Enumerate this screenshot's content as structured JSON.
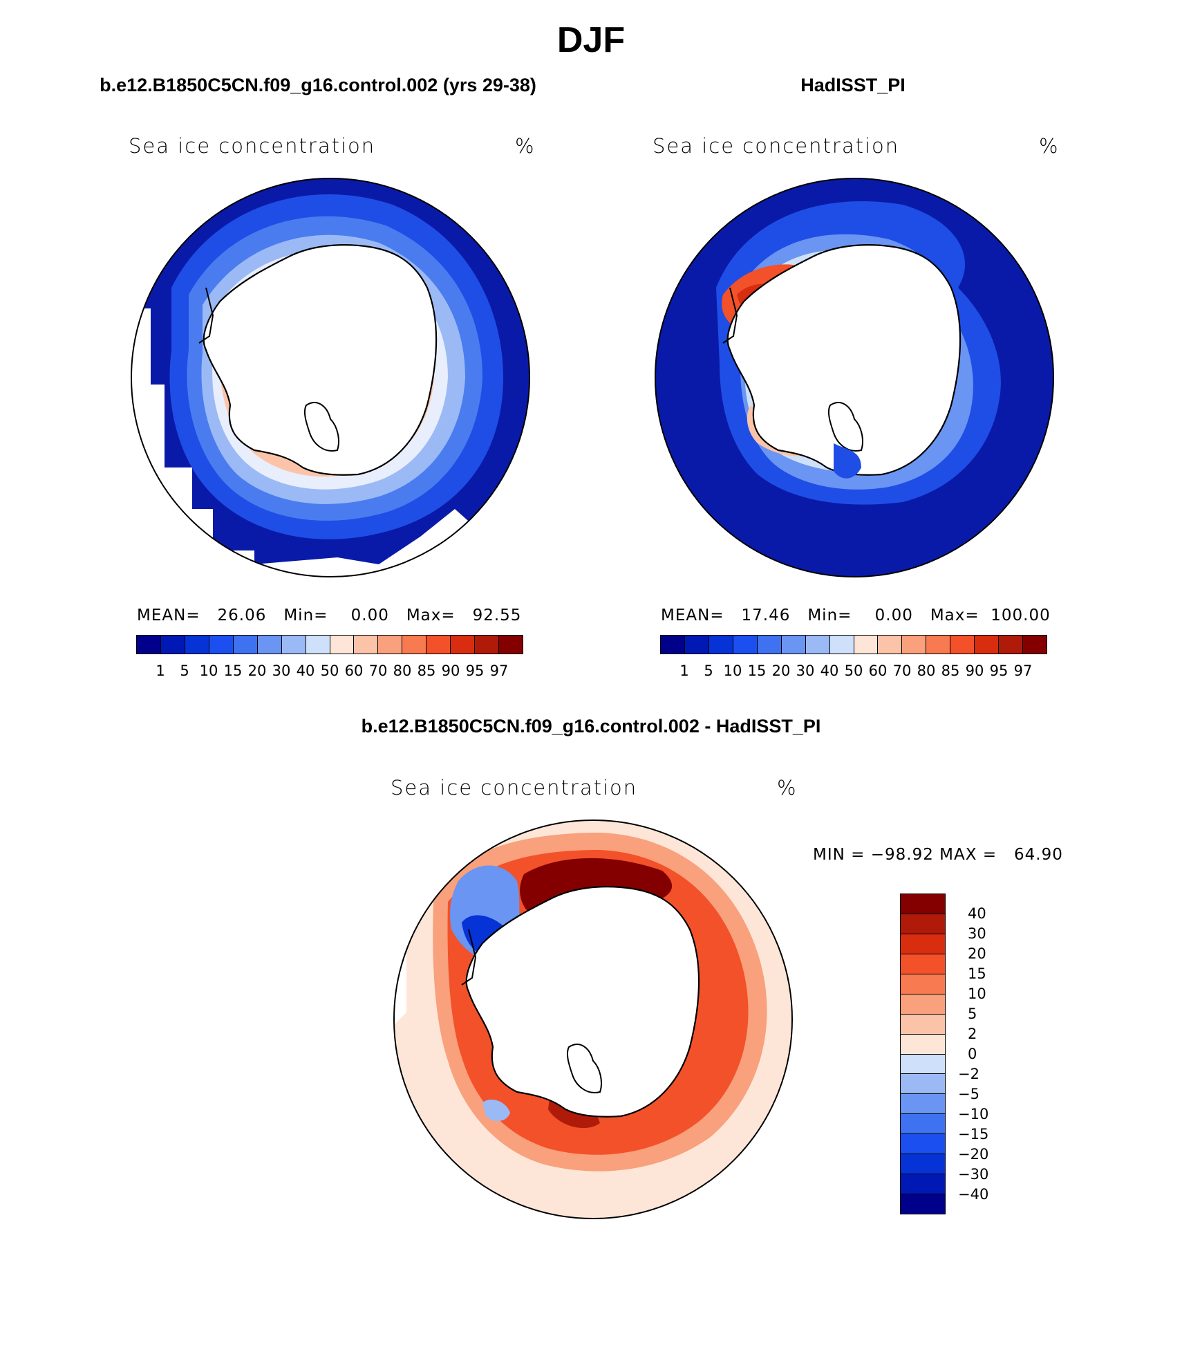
{
  "page_title": "DJF",
  "panels": [
    {
      "title": "b.e12.B1850C5CN.f09_g16.control.002 (yrs 29-38)",
      "variable": "Sea ice concentration",
      "units": "%",
      "stats": {
        "mean_label": "MEAN=",
        "mean": "26.06",
        "min_label": "Min=",
        "min": "0.00",
        "max_label": "Max=",
        "max": "92.55"
      }
    },
    {
      "title": "HadISST_PI",
      "variable": "Sea ice concentration",
      "units": "%",
      "stats": {
        "mean_label": "MEAN=",
        "mean": "17.46",
        "min_label": "Min=",
        "min": "0.00",
        "max_label": "Max=",
        "max": "100.00"
      }
    },
    {
      "title": "b.e12.B1850C5CN.f09_g16.control.002 - HadISST_PI",
      "variable": "Sea ice concentration",
      "units": "%",
      "stats": {
        "min_label": "MIN =",
        "min": "−98.92",
        "max_label": "MAX =",
        "max": "64.90"
      }
    }
  ],
  "colorbar_main": {
    "levels": [
      "1",
      "5",
      "10",
      "15",
      "20",
      "30",
      "40",
      "50",
      "60",
      "70",
      "80",
      "85",
      "90",
      "95",
      "97"
    ],
    "colors": [
      "#00008a",
      "#0019b4",
      "#0533d6",
      "#1c4ff0",
      "#3f72f0",
      "#6a95f2",
      "#9bbaf5",
      "#cfe1fa",
      "#fde6d8",
      "#fbc4a8",
      "#f9a07c",
      "#f77a50",
      "#f2512a",
      "#d92d10",
      "#b01a08",
      "#840000"
    ]
  },
  "colorbar_diff": {
    "levels": [
      "40",
      "30",
      "20",
      "15",
      "10",
      "5",
      "2",
      "0",
      "−2",
      "−5",
      "−10",
      "−15",
      "−20",
      "−30",
      "−40"
    ],
    "colors": [
      "#840000",
      "#b01a08",
      "#d92d10",
      "#f2512a",
      "#f77a50",
      "#f9a07c",
      "#fbc4a8",
      "#fde6d8",
      "#cfe1fa",
      "#9bbaf5",
      "#6a95f2",
      "#3f72f0",
      "#1c4ff0",
      "#0533d6",
      "#0019b4",
      "#00008a"
    ]
  }
}
